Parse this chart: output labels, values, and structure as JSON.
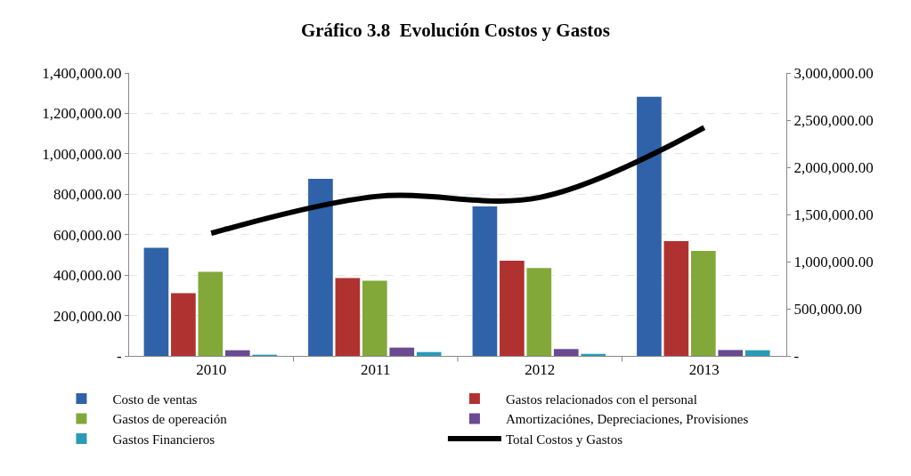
{
  "chart_data": {
    "type": "bar",
    "title": "Gráfico 3.8  Evolución Costos y Gastos",
    "categories": [
      "2010",
      "2011",
      "2012",
      "2013"
    ],
    "series": [
      {
        "name": "Costo de ventas",
        "color": "#2f62a8",
        "values": [
          535000,
          876000,
          740000,
          1282000
        ]
      },
      {
        "name": "Gastos relacionados con el personal",
        "color": "#b03230",
        "values": [
          310000,
          385000,
          471000,
          568000
        ]
      },
      {
        "name": "Gastos de opereación",
        "color": "#82a83a",
        "values": [
          416000,
          372000,
          435000,
          519000
        ]
      },
      {
        "name": "Amortizaciónes, Depreciaciones, Provisiones",
        "color": "#6a4a92",
        "values": [
          28000,
          41000,
          34000,
          29000
        ]
      },
      {
        "name": "Gastos Financieros",
        "color": "#2a9ab8",
        "values": [
          6000,
          19000,
          10000,
          28000
        ]
      },
      {
        "name": "Total Costos y Gastos",
        "type": "line",
        "axis": "y2",
        "color": "#000000",
        "values": [
          1300000,
          1690000,
          1680000,
          2420000
        ]
      }
    ],
    "ylim": [
      0,
      1400000
    ],
    "yticks": [
      {
        "value": 0,
        "label": "-"
      },
      {
        "value": 200000,
        "label": "200,000.00"
      },
      {
        "value": 400000,
        "label": "400,000.00"
      },
      {
        "value": 600000,
        "label": "600,000.00"
      },
      {
        "value": 800000,
        "label": "800,000.00"
      },
      {
        "value": 1000000,
        "label": "1,000,000.00"
      },
      {
        "value": 1200000,
        "label": "1,200,000.00"
      },
      {
        "value": 1400000,
        "label": "1,400,000.00"
      }
    ],
    "y2lim": [
      0,
      3000000
    ],
    "y2ticks": [
      {
        "value": 0,
        "label": "-"
      },
      {
        "value": 500000,
        "label": "500,000.00"
      },
      {
        "value": 1000000,
        "label": "1,000,000.00"
      },
      {
        "value": 1500000,
        "label": "1,500,000.00"
      },
      {
        "value": 2000000,
        "label": "2,000,000.00"
      },
      {
        "value": 2500000,
        "label": "2,500,000.00"
      },
      {
        "value": 3000000,
        "label": "3,000,000.00"
      }
    ],
    "grid": "y",
    "legend": "bottom",
    "marker": "none",
    "line_style": "solid"
  }
}
